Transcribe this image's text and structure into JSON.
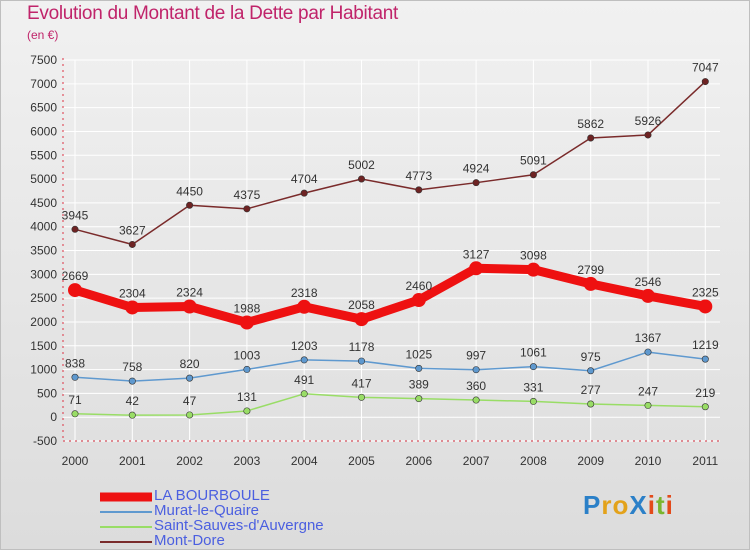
{
  "chart_data": {
    "type": "line",
    "title": "Evolution du Montant de la Dette par Habitant",
    "subtitle": "(en €)",
    "categories": [
      "2000",
      "2001",
      "2002",
      "2003",
      "2004",
      "2005",
      "2006",
      "2007",
      "2008",
      "2009",
      "2010",
      "2011"
    ],
    "ylim": [
      -500,
      7500
    ],
    "yticks": [
      -500,
      0,
      500,
      1000,
      1500,
      2000,
      2500,
      3000,
      3500,
      4000,
      4500,
      5000,
      5500,
      6000,
      6500,
      7000,
      7500
    ],
    "grid": true,
    "legend_position": "bottom-left",
    "series": [
      {
        "name": "LA BOURBOULE",
        "color": "#ee1111",
        "values": [
          2669,
          2304,
          2324,
          1988,
          2318,
          2058,
          2460,
          3127,
          3098,
          2799,
          2546,
          2325
        ]
      },
      {
        "name": "Murat-le-Quaire",
        "color": "#5f99cf",
        "values": [
          838,
          758,
          820,
          1003,
          1203,
          1178,
          1025,
          997,
          1061,
          975,
          1367,
          1219
        ]
      },
      {
        "name": "Saint-Sauves-d'Auvergne",
        "color": "#99dd66",
        "values": [
          71,
          42,
          47,
          131,
          491,
          417,
          389,
          360,
          331,
          277,
          247,
          219
        ]
      },
      {
        "name": "Mont-Dore",
        "color": "#7a2b2b",
        "values": [
          3945,
          3627,
          4450,
          4375,
          4704,
          5002,
          4773,
          4924,
          5091,
          5862,
          5926,
          7047
        ]
      }
    ]
  },
  "logo": {
    "text": "Proxiti",
    "letters": [
      {
        "ch": "P",
        "color": "#2b80c8"
      },
      {
        "ch": "r",
        "color": "#e3a21a"
      },
      {
        "ch": "o",
        "color": "#e3a21a"
      },
      {
        "ch": "X",
        "color": "#2b80c8"
      },
      {
        "ch": "i",
        "color": "#e34a1a"
      },
      {
        "ch": "t",
        "color": "#7ab52e"
      },
      {
        "ch": "i",
        "color": "#e34a1a"
      }
    ]
  }
}
